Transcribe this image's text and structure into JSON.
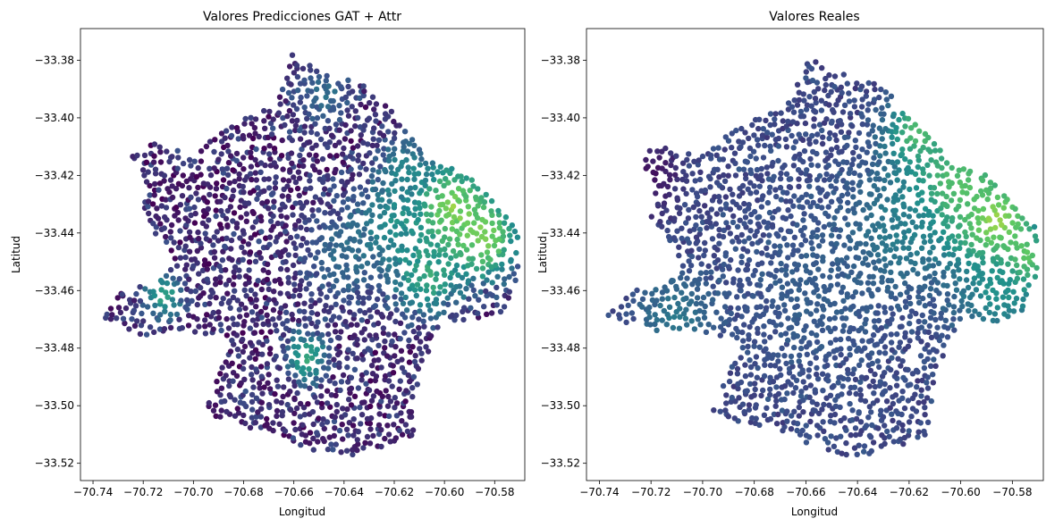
{
  "chart_data": [
    {
      "type": "scatter",
      "title": "Valores Predicciones GAT + Attr",
      "xlabel": "Longitud",
      "ylabel": "Latitud",
      "xlim": [
        -70.745,
        -70.568
      ],
      "ylim": [
        -33.526,
        -33.369
      ],
      "xticks": [
        -70.74,
        -70.72,
        -70.7,
        -70.68,
        -70.66,
        -70.64,
        -70.62,
        -70.6,
        -70.58
      ],
      "xtick_labels": [
        "−70.74",
        "−70.72",
        "−70.70",
        "−70.68",
        "−70.66",
        "−70.64",
        "−70.62",
        "−70.60",
        "−70.58"
      ],
      "yticks": [
        -33.38,
        -33.4,
        -33.42,
        -33.44,
        -33.46,
        -33.48,
        -33.5,
        -33.52
      ],
      "ytick_labels": [
        "−33.38",
        "−33.40",
        "−33.42",
        "−33.44",
        "−33.46",
        "−33.48",
        "−33.50",
        "−33.52"
      ],
      "grid": false,
      "colormap": "viridis",
      "colors": [
        "#440154",
        "#3b528b",
        "#21918c",
        "#5ec962",
        "#fde725"
      ],
      "boundary": [
        [
          -70.662,
          -33.377
        ],
        [
          -70.65,
          -33.384
        ],
        [
          -70.636,
          -33.386
        ],
        [
          -70.622,
          -33.396
        ],
        [
          -70.614,
          -33.404
        ],
        [
          -70.606,
          -33.413
        ],
        [
          -70.59,
          -33.42
        ],
        [
          -70.578,
          -33.432
        ],
        [
          -70.571,
          -33.438
        ],
        [
          -70.57,
          -33.452
        ],
        [
          -70.574,
          -33.466
        ],
        [
          -70.587,
          -33.471
        ],
        [
          -70.6,
          -33.47
        ],
        [
          -70.607,
          -33.483
        ],
        [
          -70.611,
          -33.494
        ],
        [
          -70.612,
          -33.512
        ],
        [
          -70.62,
          -33.513
        ],
        [
          -70.64,
          -33.518
        ],
        [
          -70.655,
          -33.515
        ],
        [
          -70.668,
          -33.509
        ],
        [
          -70.68,
          -33.508
        ],
        [
          -70.696,
          -33.502
        ],
        [
          -70.69,
          -33.488
        ],
        [
          -70.684,
          -33.478
        ],
        [
          -70.693,
          -33.476
        ],
        [
          -70.707,
          -33.473
        ],
        [
          -70.72,
          -33.476
        ],
        [
          -70.737,
          -33.469
        ],
        [
          -70.727,
          -33.458
        ],
        [
          -70.717,
          -33.459
        ],
        [
          -70.708,
          -33.452
        ],
        [
          -70.713,
          -33.443
        ],
        [
          -70.72,
          -33.435
        ],
        [
          -70.719,
          -33.422
        ],
        [
          -70.725,
          -33.413
        ],
        [
          -70.716,
          -33.409
        ],
        [
          -70.7,
          -33.413
        ],
        [
          -70.685,
          -33.402
        ],
        [
          -70.676,
          -33.399
        ],
        [
          -70.668,
          -33.396
        ],
        [
          -70.662,
          -33.383
        ]
      ],
      "hotspots": [
        {
          "lon": -70.598,
          "lat": -33.432,
          "radius": 0.012,
          "value": 0.85
        },
        {
          "lon": -70.584,
          "lat": -33.442,
          "radius": 0.01,
          "value": 0.8
        },
        {
          "lon": -70.607,
          "lat": -33.455,
          "radius": 0.01,
          "value": 0.6
        },
        {
          "lon": -70.622,
          "lat": -33.438,
          "radius": 0.01,
          "value": 0.55
        },
        {
          "lon": -70.615,
          "lat": -33.418,
          "radius": 0.008,
          "value": 0.45
        },
        {
          "lon": -70.64,
          "lat": -33.448,
          "radius": 0.012,
          "value": 0.35
        },
        {
          "lon": -70.655,
          "lat": -33.483,
          "radius": 0.006,
          "value": 0.6
        },
        {
          "lon": -70.712,
          "lat": -33.462,
          "radius": 0.006,
          "value": 0.55
        },
        {
          "lon": -70.648,
          "lat": -33.392,
          "radius": 0.008,
          "value": 0.35
        }
      ],
      "base_value": 0.12,
      "noise": 0.18,
      "seed": 11
    },
    {
      "type": "scatter",
      "title": "Valores Reales",
      "xlabel": "Longitud",
      "ylabel": "Latitud",
      "xlim": [
        -70.745,
        -70.568
      ],
      "ylim": [
        -33.526,
        -33.369
      ],
      "xticks": [
        -70.74,
        -70.72,
        -70.7,
        -70.68,
        -70.66,
        -70.64,
        -70.62,
        -70.6,
        -70.58
      ],
      "xtick_labels": [
        "−70.74",
        "−70.72",
        "−70.70",
        "−70.68",
        "−70.66",
        "−70.64",
        "−70.62",
        "−70.60",
        "−70.58"
      ],
      "yticks": [
        -33.38,
        -33.4,
        -33.42,
        -33.44,
        -33.46,
        -33.48,
        -33.5,
        -33.52
      ],
      "ytick_labels": [
        "−33.38",
        "−33.40",
        "−33.42",
        "−33.44",
        "−33.46",
        "−33.48",
        "−33.50",
        "−33.52"
      ],
      "grid": false,
      "colormap": "viridis",
      "colors": [
        "#440154",
        "#3b528b",
        "#21918c",
        "#5ec962",
        "#fde725"
      ],
      "boundary": [
        [
          -70.662,
          -33.377
        ],
        [
          -70.65,
          -33.384
        ],
        [
          -70.636,
          -33.386
        ],
        [
          -70.622,
          -33.396
        ],
        [
          -70.614,
          -33.404
        ],
        [
          -70.606,
          -33.413
        ],
        [
          -70.59,
          -33.42
        ],
        [
          -70.578,
          -33.432
        ],
        [
          -70.571,
          -33.438
        ],
        [
          -70.57,
          -33.452
        ],
        [
          -70.574,
          -33.466
        ],
        [
          -70.587,
          -33.471
        ],
        [
          -70.6,
          -33.47
        ],
        [
          -70.607,
          -33.483
        ],
        [
          -70.611,
          -33.494
        ],
        [
          -70.612,
          -33.512
        ],
        [
          -70.62,
          -33.513
        ],
        [
          -70.64,
          -33.518
        ],
        [
          -70.655,
          -33.515
        ],
        [
          -70.668,
          -33.509
        ],
        [
          -70.68,
          -33.508
        ],
        [
          -70.696,
          -33.502
        ],
        [
          -70.69,
          -33.488
        ],
        [
          -70.684,
          -33.478
        ],
        [
          -70.693,
          -33.476
        ],
        [
          -70.707,
          -33.473
        ],
        [
          -70.72,
          -33.476
        ],
        [
          -70.737,
          -33.469
        ],
        [
          -70.727,
          -33.458
        ],
        [
          -70.717,
          -33.459
        ],
        [
          -70.708,
          -33.452
        ],
        [
          -70.713,
          -33.443
        ],
        [
          -70.72,
          -33.435
        ],
        [
          -70.719,
          -33.422
        ],
        [
          -70.725,
          -33.413
        ],
        [
          -70.716,
          -33.409
        ],
        [
          -70.7,
          -33.413
        ],
        [
          -70.685,
          -33.402
        ],
        [
          -70.676,
          -33.399
        ],
        [
          -70.668,
          -33.396
        ],
        [
          -70.662,
          -33.383
        ]
      ],
      "hotspots": [
        {
          "lon": -70.588,
          "lat": -33.437,
          "radius": 0.01,
          "value": 1.0
        },
        {
          "lon": -70.577,
          "lat": -33.45,
          "radius": 0.007,
          "value": 0.95
        },
        {
          "lon": -70.603,
          "lat": -33.425,
          "radius": 0.014,
          "value": 0.75
        },
        {
          "lon": -70.617,
          "lat": -33.405,
          "radius": 0.008,
          "value": 0.7
        },
        {
          "lon": -70.585,
          "lat": -33.46,
          "radius": 0.012,
          "value": 0.5
        },
        {
          "lon": -70.625,
          "lat": -33.44,
          "radius": 0.014,
          "value": 0.45
        },
        {
          "lon": -70.71,
          "lat": -33.468,
          "radius": 0.01,
          "value": 0.4
        },
        {
          "lon": -70.655,
          "lat": -33.46,
          "radius": 0.02,
          "value": 0.3
        },
        {
          "lon": -70.72,
          "lat": -33.42,
          "radius": 0.008,
          "value": 0.05
        }
      ],
      "base_value": 0.22,
      "noise": 0.08,
      "seed": 23
    }
  ]
}
